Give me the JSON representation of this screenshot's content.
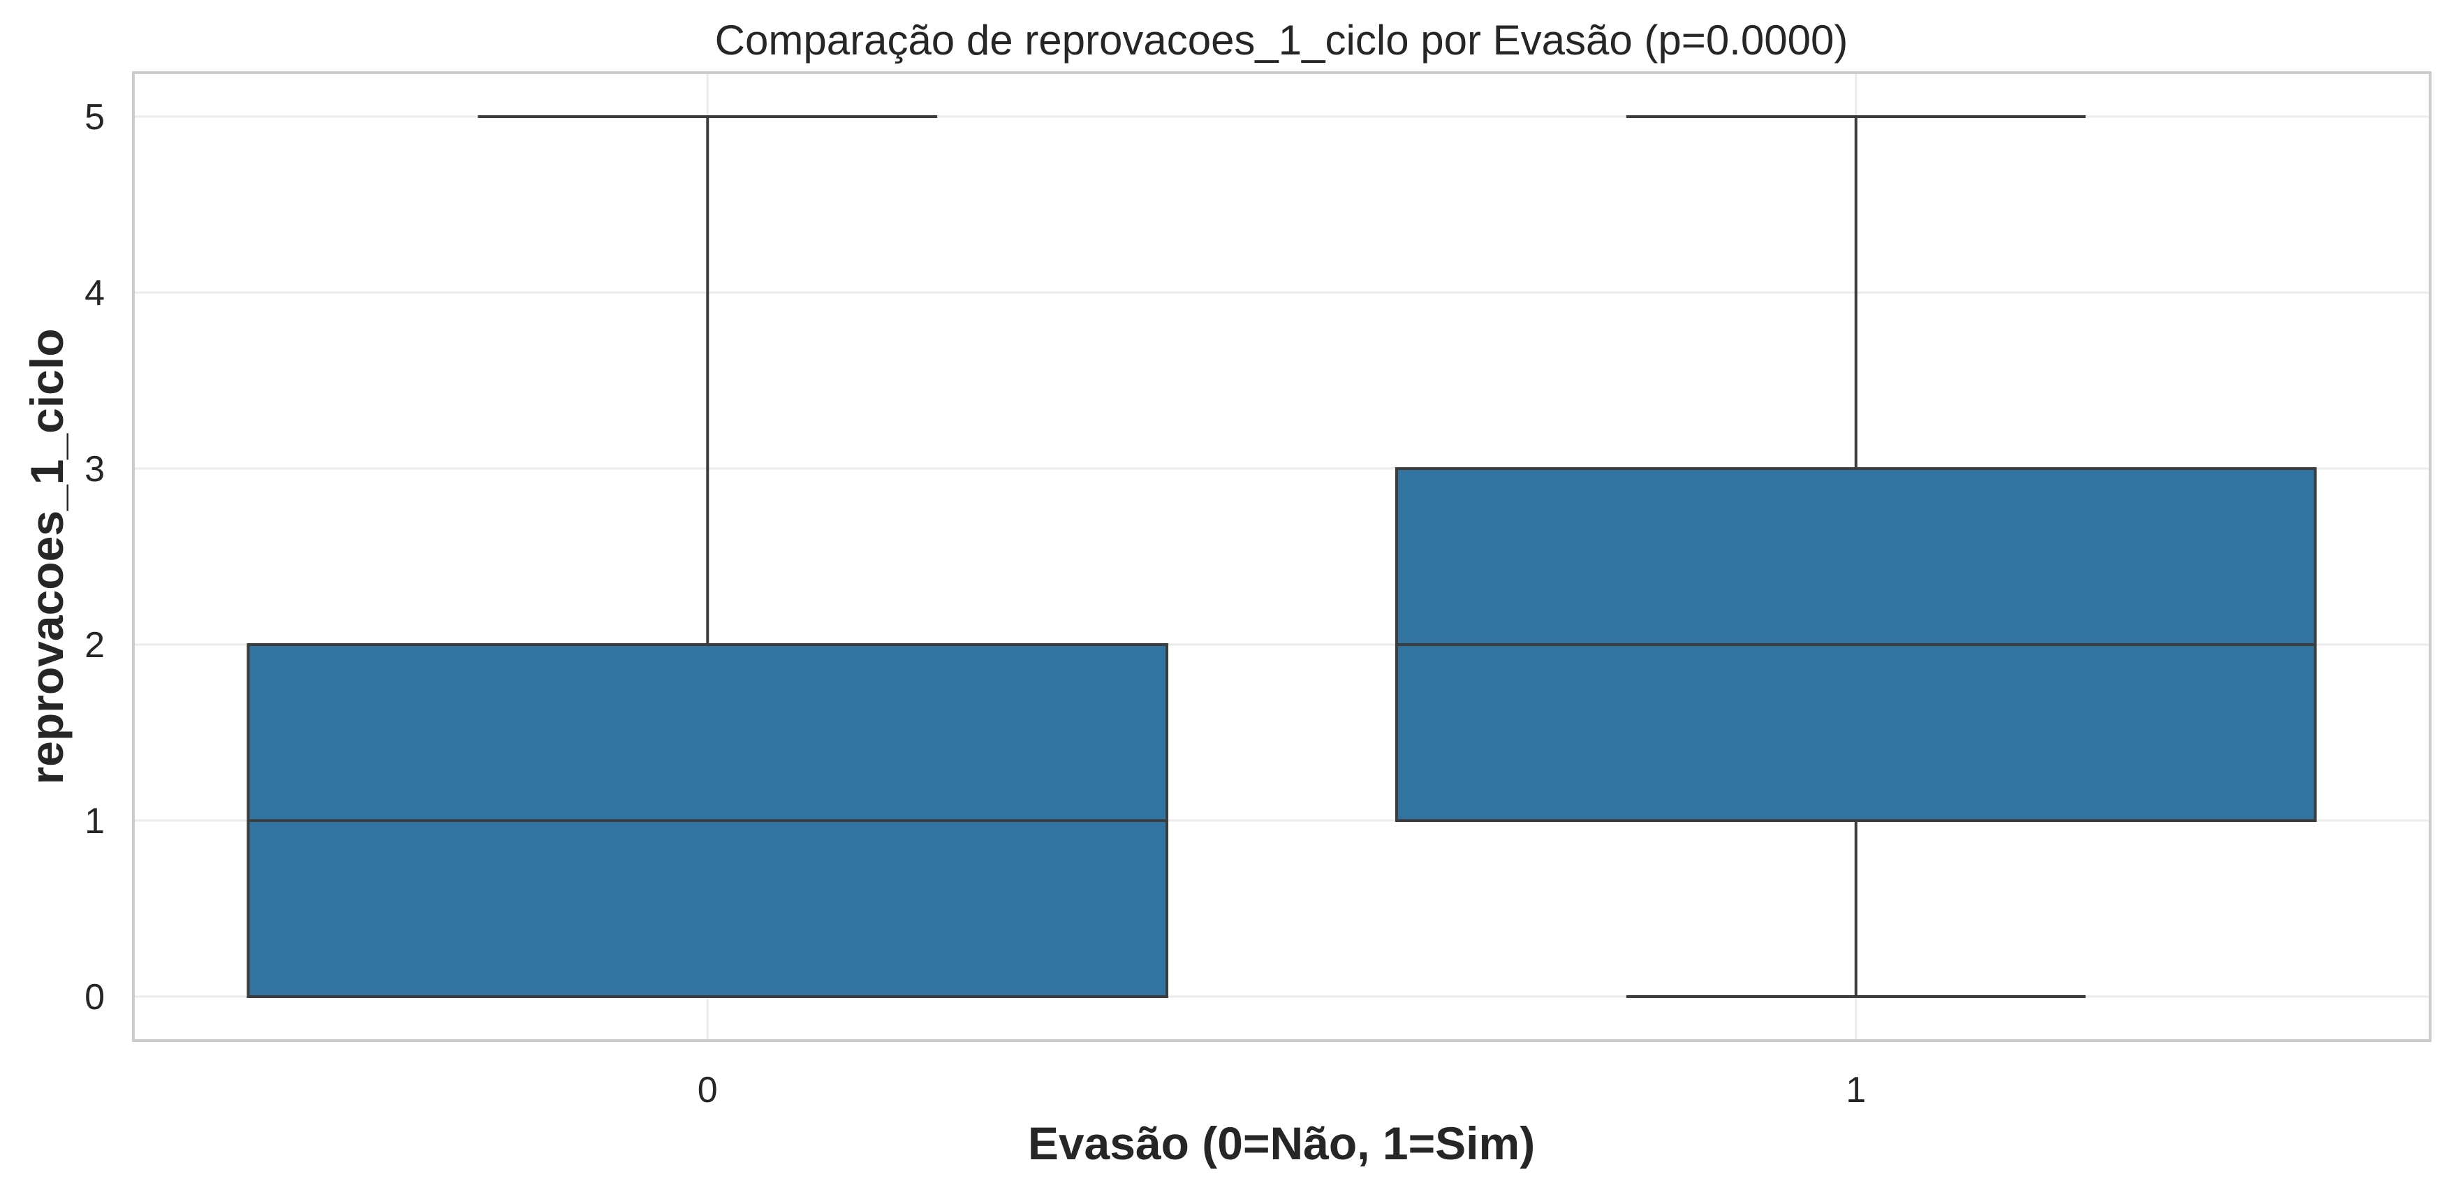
{
  "chart_data": {
    "type": "box",
    "title": "Comparação de reprovacoes_1_ciclo por Evasão (p=0.0000)",
    "xlabel": "Evasão (0=Não, 1=Sim)",
    "ylabel": "reprovacoes_1_ciclo",
    "categories": [
      "0",
      "1"
    ],
    "ylim": [
      -0.25,
      5.25
    ],
    "yticks": [
      0,
      1,
      2,
      3,
      4,
      5
    ],
    "grid": true,
    "colors": {
      "box_fill": "#3274a1",
      "line": "#3d3d3d",
      "grid": "#ebebeb",
      "frame": "#cccccc"
    },
    "boxes": [
      {
        "category": "0",
        "whisker_low": 0,
        "q1": 0,
        "median": 1,
        "q3": 2,
        "whisker_high": 5
      },
      {
        "category": "1",
        "whisker_low": 0,
        "q1": 1,
        "median": 2,
        "q3": 3,
        "whisker_high": 5
      }
    ]
  }
}
